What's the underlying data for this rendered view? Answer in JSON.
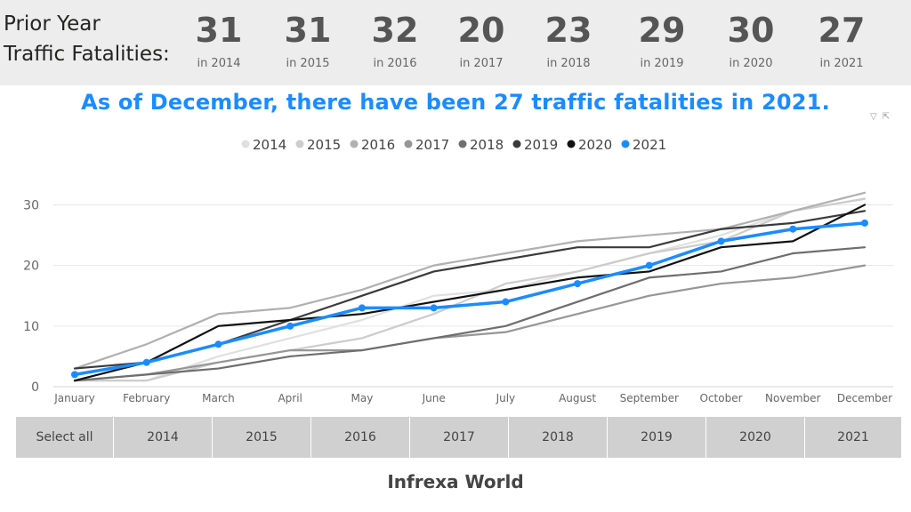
{
  "kpi": {
    "title": "Prior Year\nTraffic Fatalities:",
    "items": [
      {
        "value": "31",
        "label": "in 2014"
      },
      {
        "value": "31",
        "label": "in 2015"
      },
      {
        "value": "32",
        "label": "in 2016"
      },
      {
        "value": "20",
        "label": "in 2017"
      },
      {
        "value": "23",
        "label": "in 2018"
      },
      {
        "value": "29",
        "label": "in 2019"
      },
      {
        "value": "30",
        "label": "in 2020"
      },
      {
        "value": "27",
        "label": "in 2021"
      }
    ]
  },
  "headline": "As of December, there have been 27 traffic fatalities in 2021.",
  "chart_icons": {
    "filter_icon": "filter-icon",
    "expand_icon": "expand-icon"
  },
  "chart_data": {
    "type": "line",
    "categories": [
      "January",
      "February",
      "March",
      "April",
      "May",
      "June",
      "July",
      "August",
      "September",
      "October",
      "November",
      "December"
    ],
    "ylim": [
      0,
      33
    ],
    "yticks": [
      0,
      10,
      20,
      30
    ],
    "grid": true,
    "legend": "top-center",
    "series": [
      {
        "name": "2014",
        "color": "#e0e0e0",
        "values": [
          1,
          1,
          5,
          8,
          11,
          15,
          16,
          19,
          22,
          25,
          29,
          31
        ]
      },
      {
        "name": "2015",
        "color": "#cccccc",
        "values": [
          1,
          1,
          4,
          6,
          8,
          12,
          17,
          19,
          22,
          24,
          29,
          31
        ]
      },
      {
        "name": "2016",
        "color": "#b0b0b0",
        "values": [
          3,
          7,
          12,
          13,
          16,
          20,
          22,
          24,
          25,
          26,
          29,
          32
        ]
      },
      {
        "name": "2017",
        "color": "#969696",
        "values": [
          1,
          2,
          4,
          6,
          6,
          8,
          9,
          12,
          15,
          17,
          18,
          20
        ]
      },
      {
        "name": "2018",
        "color": "#6e6e6e",
        "values": [
          1,
          2,
          3,
          5,
          6,
          8,
          10,
          14,
          18,
          19,
          22,
          23
        ]
      },
      {
        "name": "2019",
        "color": "#3a3a3a",
        "values": [
          3,
          4,
          7,
          11,
          15,
          19,
          21,
          23,
          23,
          26,
          27,
          29
        ]
      },
      {
        "name": "2020",
        "color": "#111111",
        "values": [
          1,
          4,
          10,
          11,
          12,
          14,
          16,
          18,
          19,
          23,
          24,
          30
        ]
      },
      {
        "name": "2021",
        "color": "#1a8cff",
        "values": [
          2,
          4,
          7,
          10,
          13,
          13,
          14,
          17,
          20,
          24,
          26,
          27
        ],
        "markers": true
      }
    ]
  },
  "slicer": {
    "options": [
      "Select all",
      "2014",
      "2015",
      "2016",
      "2017",
      "2018",
      "2019",
      "2020",
      "2021"
    ]
  },
  "footer": "Infrexa World"
}
